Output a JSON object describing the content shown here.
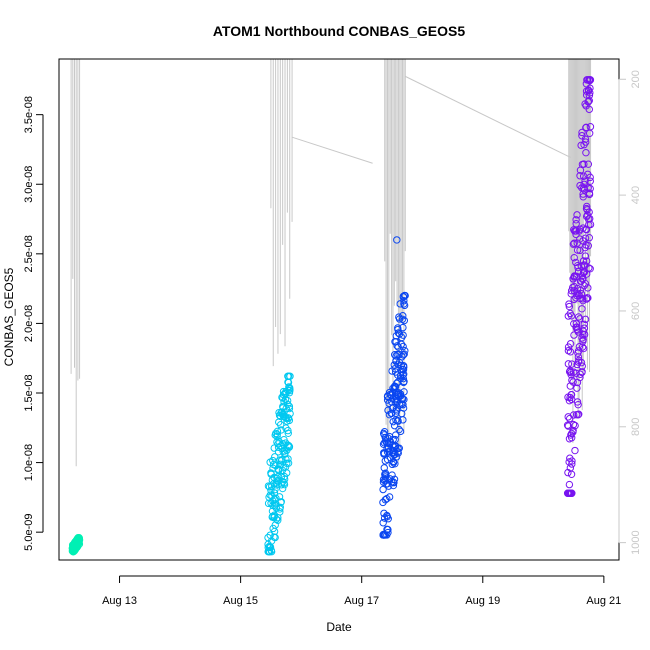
{
  "chart_data": {
    "type": "scatter",
    "title": "ATOM1 Northbound CONBAS_GEOS5",
    "xlabel": "Date",
    "ylabel": "CONBAS_GEOS5",
    "x_ticks": [
      {
        "label": "Aug 13",
        "day": 13
      },
      {
        "label": "Aug 15",
        "day": 15
      },
      {
        "label": "Aug 17",
        "day": 17
      },
      {
        "label": "Aug 19",
        "day": 19
      },
      {
        "label": "Aug 21",
        "day": 21
      }
    ],
    "xlim_days": [
      12.0,
      21.25
    ],
    "y_ticks": [
      {
        "label": "5.0e-09",
        "value": 5e-09
      },
      {
        "label": "1.0e-08",
        "value": 1e-08
      },
      {
        "label": "1.5e-08",
        "value": 1.5e-08
      },
      {
        "label": "2.0e-08",
        "value": 2e-08
      },
      {
        "label": "2.5e-08",
        "value": 2.5e-08
      },
      {
        "label": "3.0e-08",
        "value": 3e-08
      },
      {
        "label": "3.5e-08",
        "value": 3.5e-08
      }
    ],
    "ylim": [
      3e-09,
      3.9e-08
    ],
    "y2_ticks": [
      {
        "label": "200",
        "value": 200
      },
      {
        "label": "400",
        "value": 400
      },
      {
        "label": "600",
        "value": 600
      },
      {
        "label": "800",
        "value": 800
      },
      {
        "label": "1000",
        "value": 1000
      }
    ],
    "y2lim": [
      1030,
      165
    ],
    "y2_reversed": true,
    "grid": false,
    "colors": {
      "pressure_line": "#c8c8c8",
      "series": [
        "#00f0b4",
        "#00c8f0",
        "#0a46f0",
        "#7814f0"
      ]
    },
    "clusters": [
      {
        "day_start": 12.22,
        "day_end": 12.34,
        "v_min": 3.6e-09,
        "v_max": 4.6e-09,
        "count": 120,
        "color": "#00f0b4"
      },
      {
        "day_start": 15.45,
        "day_end": 15.82,
        "v_min": 3.6e-09,
        "v_max": 1.62e-08,
        "count": 170,
        "color": "#00c8f0"
      },
      {
        "day_start": 17.35,
        "day_end": 17.72,
        "v_min": 4.8e-09,
        "v_max": 2.2e-08,
        "count": 200,
        "color": "#0a46f0"
      },
      {
        "day_start": 20.4,
        "day_end": 20.78,
        "v_min": 7.8e-09,
        "v_max": 3.75e-08,
        "count": 240,
        "color": "#7814f0"
      }
    ],
    "outliers": [
      {
        "day": 17.58,
        "value": 2.6e-08,
        "color": "#0a46f0"
      }
    ],
    "pressure_profiles": [
      {
        "day_start": 12.2,
        "day_end": 12.34,
        "p_min": 150,
        "p_max": 870,
        "count": 6
      },
      {
        "day_start": 15.5,
        "day_end": 15.85,
        "p_min": 150,
        "p_max": 740,
        "count": 10
      },
      {
        "day_start": 17.38,
        "day_end": 17.72,
        "p_min": 150,
        "p_max": 900,
        "count": 16
      },
      {
        "day_start": 20.42,
        "day_end": 20.78,
        "p_min": 150,
        "p_max": 840,
        "count": 22
      }
    ],
    "pressure_transits": [
      {
        "day_from": 15.85,
        "p_from": 300,
        "day_to": 17.18,
        "p_to": 345
      },
      {
        "day_from": 17.72,
        "p_from": 195,
        "day_to": 20.45,
        "p_to": 335
      }
    ]
  }
}
